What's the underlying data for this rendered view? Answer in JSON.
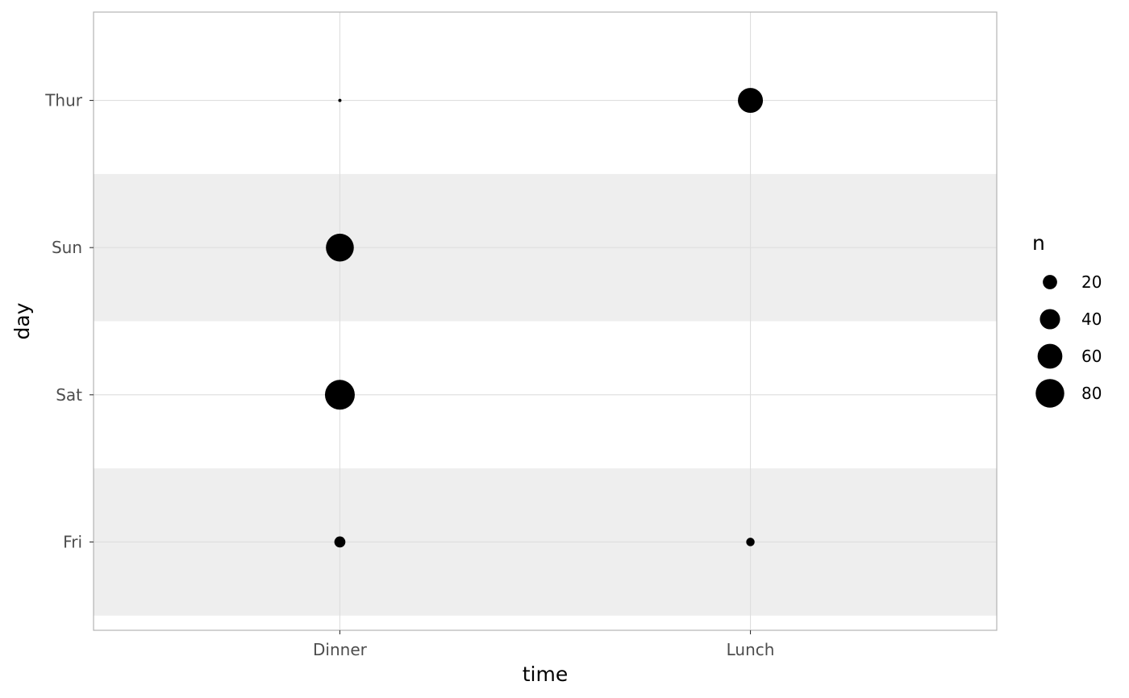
{
  "chart_data": {
    "type": "scatter",
    "x_categories": [
      "Dinner",
      "Lunch"
    ],
    "y_categories": [
      "Fri",
      "Sat",
      "Sun",
      "Thur"
    ],
    "xlabel": "time",
    "ylabel": "day",
    "points": [
      {
        "x": "Dinner",
        "y": "Fri",
        "n": 12
      },
      {
        "x": "Lunch",
        "y": "Fri",
        "n": 7
      },
      {
        "x": "Dinner",
        "y": "Sat",
        "n": 87
      },
      {
        "x": "Dinner",
        "y": "Sun",
        "n": 76
      },
      {
        "x": "Dinner",
        "y": "Thur",
        "n": 1
      },
      {
        "x": "Lunch",
        "y": "Thur",
        "n": 61
      }
    ],
    "size_legend": {
      "title": "n",
      "breaks": [
        20,
        40,
        60,
        80
      ],
      "labels": [
        "20",
        "40",
        "60",
        "80"
      ]
    },
    "grid": true,
    "alternating_band_color": "#eeeeee",
    "point_color": "#000000",
    "legend_position": "right"
  }
}
